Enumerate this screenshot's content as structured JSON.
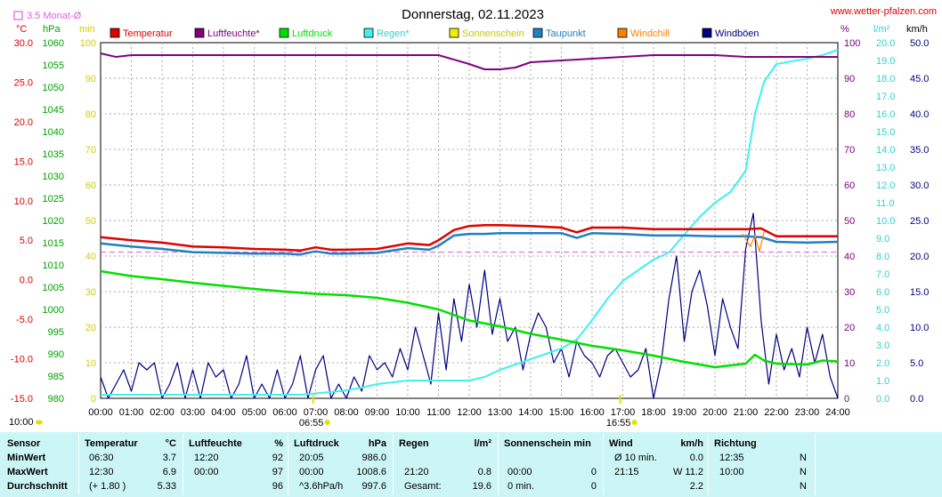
{
  "header": {
    "title": "Donnerstag, 02.11.2023",
    "site": "www.wetter-pfalzen.com",
    "avg_label": "3.5 Monat-Ø",
    "sunrise": "06:55",
    "sunset": "16:55",
    "start_time": "10:00"
  },
  "colors": {
    "temperature": "#e00000",
    "humidity": "#800080",
    "pressure": "#00e000",
    "rain": "#40f0f0",
    "sunshine": "#f0f000",
    "dewpoint": "#2080c0",
    "windchill": "#ff8000",
    "gusts": "#000080",
    "avg_line": "#e060e0",
    "stats_bg": "#ccf5f5"
  },
  "chart_data": {
    "type": "line",
    "title": "Donnerstag, 02.11.2023",
    "x_ticks": [
      "00:00",
      "01:00",
      "02:00",
      "03:00",
      "04:00",
      "05:00",
      "06:00",
      "07:00",
      "08:00",
      "09:00",
      "10:00",
      "11:00",
      "12:00",
      "13:00",
      "14:00",
      "15:00",
      "16:00",
      "17:00",
      "18:00",
      "19:00",
      "20:00",
      "21:00",
      "22:00",
      "23:00",
      "24:00"
    ],
    "axes": {
      "temp": {
        "unit": "°C",
        "min": -15,
        "max": 30,
        "ticks": [
          "30.0",
          "25.0",
          "20.0",
          "15.0",
          "10.0",
          "5.0",
          "0.0",
          "-5.0",
          "-10.0",
          "-15.0"
        ]
      },
      "pressure": {
        "unit": "hPa",
        "min": 980,
        "max": 1060,
        "ticks": [
          "1060",
          "1055",
          "1050",
          "1045",
          "1040",
          "1035",
          "1030",
          "1025",
          "1020",
          "1015",
          "1010",
          "1005",
          "1000",
          "995",
          "990",
          "985",
          "980"
        ]
      },
      "sun": {
        "unit": "min",
        "min": 0,
        "max": 100,
        "ticks": [
          "100",
          "90",
          "80",
          "70",
          "60",
          "50",
          "40",
          "30",
          "20",
          "10",
          "0"
        ]
      },
      "humidity": {
        "unit": "%",
        "min": 0,
        "max": 100,
        "ticks": [
          "100",
          "90",
          "80",
          "70",
          "60",
          "50",
          "40",
          "30",
          "20",
          "10",
          "0"
        ]
      },
      "rain": {
        "unit": "l/m²",
        "min": 0,
        "max": 20,
        "ticks": [
          "20.0",
          "19.0",
          "18.0",
          "17.0",
          "16.0",
          "15.0",
          "14.0",
          "13.0",
          "12.0",
          "11.0",
          "10.0",
          "9.0",
          "8.0",
          "7.0",
          "6.0",
          "5.0",
          "4.0",
          "3.0",
          "2.0",
          "1.0",
          "0.0"
        ]
      },
      "wind": {
        "unit": "km/h",
        "min": 0,
        "max": 50,
        "ticks": [
          "50.0",
          "45.0",
          "40.0",
          "35.0",
          "30.0",
          "25.0",
          "20.0",
          "15.0",
          "10.0",
          "5.0",
          "0.0"
        ]
      }
    },
    "legend": [
      {
        "key": "temperature",
        "label": "Temperatur"
      },
      {
        "key": "humidity",
        "label": "Luftfeuchte*"
      },
      {
        "key": "pressure",
        "label": "Luftdruck"
      },
      {
        "key": "rain",
        "label": "Regen*"
      },
      {
        "key": "sunshine",
        "label": "Sonnenschein"
      },
      {
        "key": "dewpoint",
        "label": "Taupunkt"
      },
      {
        "key": "windchill",
        "label": "Windchill"
      },
      {
        "key": "gusts",
        "label": "Windböen"
      }
    ],
    "avg_temperature": 3.5,
    "series": [
      {
        "name": "Temperatur",
        "axis": "temp",
        "color_key": "temperature",
        "x": [
          0,
          1,
          2,
          3,
          4,
          5,
          6,
          6.5,
          7,
          7.5,
          8,
          9,
          10,
          10.7,
          11,
          11.5,
          12,
          12.5,
          13,
          14,
          15,
          15.5,
          16,
          17,
          18,
          19,
          20,
          21,
          21.5,
          22,
          23,
          24
        ],
        "y": [
          5.4,
          5.0,
          4.7,
          4.2,
          4.1,
          3.9,
          3.8,
          3.7,
          4.1,
          3.8,
          3.8,
          3.9,
          4.6,
          4.4,
          5.0,
          6.3,
          6.8,
          6.9,
          6.9,
          6.8,
          6.6,
          6.0,
          6.6,
          6.6,
          6.4,
          6.4,
          6.4,
          6.4,
          6.5,
          5.5,
          5.5,
          5.5
        ]
      },
      {
        "name": "Taupunkt",
        "axis": "temp",
        "color_key": "dewpoint",
        "x": [
          0,
          1,
          2,
          3,
          4,
          5,
          6,
          6.5,
          7,
          7.5,
          8,
          9,
          10,
          10.7,
          11,
          11.5,
          12,
          12.5,
          13,
          14,
          15,
          15.5,
          16,
          17,
          18,
          19,
          20,
          21,
          21.5,
          22,
          23,
          24
        ],
        "y": [
          4.6,
          4.2,
          3.9,
          3.5,
          3.4,
          3.3,
          3.3,
          3.2,
          3.6,
          3.3,
          3.3,
          3.4,
          4.0,
          3.8,
          4.3,
          5.6,
          5.8,
          5.8,
          5.9,
          5.9,
          5.9,
          5.3,
          5.9,
          5.8,
          5.6,
          5.6,
          5.5,
          5.5,
          5.4,
          4.8,
          4.7,
          4.8
        ]
      },
      {
        "name": "Windchill",
        "axis": "temp",
        "color_key": "windchill",
        "x": [
          20.9,
          21.0,
          21.15,
          21.3,
          21.45,
          21.6
        ],
        "y": [
          5.8,
          5.2,
          4.2,
          5.6,
          3.6,
          6.1
        ]
      },
      {
        "name": "Luftfeuchte*",
        "axis": "humidity",
        "color_key": "humidity",
        "x": [
          0,
          0.5,
          1,
          2,
          3,
          4,
          5,
          6,
          7,
          8,
          9,
          10,
          11,
          12,
          12.5,
          13,
          13.5,
          14,
          15,
          16,
          17,
          18,
          19,
          20,
          21,
          22,
          23,
          24
        ],
        "y": [
          97,
          96,
          96.5,
          96.5,
          96.5,
          96.5,
          96.5,
          96.5,
          96.5,
          96.5,
          96.5,
          96.5,
          96.5,
          94,
          92.5,
          92.5,
          93,
          94.5,
          95,
          95.5,
          96,
          96.5,
          96.5,
          96.5,
          96,
          96,
          96,
          96
        ]
      },
      {
        "name": "Luftdruck",
        "axis": "pressure",
        "color_key": "pressure",
        "x": [
          0,
          1,
          2,
          3,
          4,
          5,
          6,
          7,
          8,
          9,
          10,
          11,
          12,
          13,
          14,
          15,
          16,
          17,
          18,
          19,
          20,
          21,
          21.3,
          21.6,
          22,
          23,
          23.5,
          24
        ],
        "y": [
          1008.6,
          1007.5,
          1006.8,
          1006,
          1005.3,
          1004.6,
          1004,
          1003.5,
          1003.2,
          1002.6,
          1001.5,
          1000,
          997.5,
          996.2,
          994.5,
          993.2,
          991.8,
          990.8,
          989.6,
          988.2,
          987,
          987.8,
          989.8,
          988.5,
          987.8,
          987.6,
          988.5,
          988.3
        ]
      },
      {
        "name": "Regen*",
        "axis": "rain",
        "color_key": "rain",
        "x": [
          0,
          6.5,
          7.8,
          8.5,
          9,
          9.5,
          10,
          11,
          12,
          12.5,
          13,
          14,
          15,
          15.5,
          16,
          16.5,
          17,
          18,
          18.5,
          19,
          19.5,
          20,
          20.5,
          21,
          21.3,
          21.6,
          22,
          23,
          23.5,
          24
        ],
        "y": [
          0.2,
          0.2,
          0.4,
          0.6,
          0.8,
          0.9,
          1.0,
          1.0,
          1.0,
          1.2,
          1.6,
          2.2,
          2.8,
          3.3,
          4.4,
          5.6,
          6.6,
          7.8,
          8.2,
          9.2,
          10.2,
          11.0,
          11.6,
          12.8,
          16,
          17.8,
          18.8,
          19.1,
          19.3,
          19.6
        ]
      },
      {
        "name": "Windböen",
        "axis": "wind",
        "color_key": "gusts",
        "x": [
          0,
          0.25,
          0.5,
          0.75,
          1,
          1.25,
          1.5,
          1.75,
          2,
          2.25,
          2.5,
          2.75,
          3,
          3.25,
          3.5,
          3.75,
          4,
          4.25,
          4.5,
          4.75,
          5,
          5.25,
          5.5,
          5.75,
          6,
          6.25,
          6.5,
          6.75,
          7,
          7.25,
          7.5,
          7.75,
          8,
          8.25,
          8.5,
          8.75,
          9,
          9.25,
          9.5,
          9.75,
          10,
          10.25,
          10.5,
          10.75,
          11,
          11.25,
          11.5,
          11.75,
          12,
          12.25,
          12.5,
          12.75,
          13,
          13.25,
          13.5,
          13.75,
          14,
          14.25,
          14.5,
          14.75,
          15,
          15.25,
          15.5,
          15.75,
          16,
          16.25,
          16.5,
          16.75,
          17,
          17.25,
          17.5,
          17.75,
          18,
          18.25,
          18.5,
          18.75,
          19,
          19.25,
          19.5,
          19.75,
          20,
          20.25,
          20.5,
          20.75,
          21,
          21.25,
          21.5,
          21.75,
          22,
          22.25,
          22.5,
          22.75,
          23,
          23.25,
          23.5,
          23.75,
          24
        ],
        "y": [
          3,
          0,
          2,
          4,
          1,
          5,
          4,
          5,
          0,
          2,
          5,
          0,
          4,
          0,
          5,
          3,
          4,
          0,
          2,
          6,
          0,
          2,
          0,
          4,
          0,
          2,
          6,
          0,
          4,
          6,
          0,
          2,
          0,
          3,
          1,
          6,
          4,
          5,
          3,
          7,
          4,
          10,
          6,
          2,
          12,
          4,
          14,
          8,
          16,
          10,
          18,
          9,
          14,
          8,
          10,
          4,
          9,
          12,
          10,
          5,
          7,
          3,
          8,
          6,
          5,
          3,
          6,
          7,
          5,
          3,
          4,
          7,
          0,
          5,
          14,
          20,
          8,
          15,
          18,
          13,
          6,
          14,
          10,
          7,
          21,
          26,
          11,
          2,
          9,
          4,
          7,
          3,
          10,
          5,
          9,
          3,
          0
        ]
      }
    ]
  },
  "stats": {
    "headers": [
      {
        "label": "Sensor",
        "unit": ""
      },
      {
        "label": "Temperatur",
        "unit": "°C"
      },
      {
        "label": "Luftfeuchte",
        "unit": "%"
      },
      {
        "label": "Luftdruck",
        "unit": "hPa"
      },
      {
        "label": "Regen",
        "unit": "l/m²"
      },
      {
        "label": "Sonnenschein min",
        "unit": ""
      },
      {
        "label": "Wind",
        "unit": "km/h"
      },
      {
        "label": "Richtung",
        "unit": ""
      }
    ],
    "rows": [
      {
        "label": "MinWert",
        "temp_time": "06:30",
        "temp_val": "3.7",
        "hum_time": "12:20",
        "hum_val": "92",
        "press_time": "20:05",
        "press_val": "986.0",
        "rain_time": "",
        "rain_val": "",
        "sun_time": "",
        "sun_val": "",
        "wind_time": "Ø 10 min.",
        "wind_val": "0.0",
        "dir_time": "12:35",
        "dir_val": "N"
      },
      {
        "label": "MaxWert",
        "temp_time": "12:30",
        "temp_val": "6.9",
        "hum_time": "00:00",
        "hum_val": "97",
        "press_time": "00:00",
        "press_val": "1008.6",
        "rain_time": "21:20",
        "rain_val": "0.8",
        "sun_time": "00:00",
        "sun_val": "0",
        "wind_time": "21:15",
        "wind_val": "W 11.2",
        "dir_time": "10:00",
        "dir_val": "N"
      },
      {
        "label": "Durchschnitt",
        "temp_time": "(+ 1.80 )",
        "temp_val": "5.33",
        "hum_time": "",
        "hum_val": "96",
        "press_time": "^3.6hPa/h",
        "press_val": "997.6",
        "rain_time": "Gesamt:",
        "rain_val": "19.6",
        "sun_time": "0 min.",
        "sun_val": "0",
        "wind_time": "",
        "wind_val": "2.2",
        "dir_time": "",
        "dir_val": "N"
      }
    ]
  }
}
